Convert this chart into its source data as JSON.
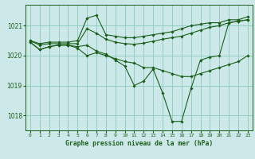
{
  "title": "Graphe pression niveau de la mer (hPa)",
  "bg_color": "#cce8e8",
  "grid_color": "#88ccbb",
  "line_color": "#1a5e1a",
  "xlim": [
    -0.5,
    23.5
  ],
  "ylim": [
    1017.5,
    1021.7
  ],
  "yticks": [
    1018,
    1019,
    1020,
    1021
  ],
  "xticks": [
    0,
    1,
    2,
    3,
    4,
    5,
    6,
    7,
    8,
    9,
    10,
    11,
    12,
    13,
    14,
    15,
    16,
    17,
    18,
    19,
    20,
    21,
    22,
    23
  ],
  "series": [
    {
      "x": [
        0,
        1,
        2,
        3,
        4,
        5,
        6,
        7,
        8,
        9,
        10,
        11,
        12,
        13,
        14,
        15,
        16,
        17,
        18,
        19,
        20,
        21,
        22,
        23
      ],
      "y": [
        1020.5,
        1020.4,
        1020.45,
        1020.45,
        1020.45,
        1020.5,
        1021.25,
        1021.35,
        1020.7,
        1020.65,
        1020.6,
        1020.6,
        1020.65,
        1020.7,
        1020.75,
        1020.8,
        1020.9,
        1021.0,
        1021.05,
        1021.1,
        1021.1,
        1021.2,
        1021.2,
        1021.3
      ]
    },
    {
      "x": [
        0,
        1,
        2,
        3,
        4,
        5,
        6,
        7,
        8,
        9,
        10,
        11,
        12,
        13,
        14,
        15,
        16,
        17,
        18,
        19,
        20,
        21,
        22,
        23
      ],
      "y": [
        1020.5,
        1020.35,
        1020.4,
        1020.4,
        1020.4,
        1020.4,
        1020.9,
        1020.75,
        1020.55,
        1020.45,
        1020.4,
        1020.38,
        1020.42,
        1020.48,
        1020.55,
        1020.6,
        1020.65,
        1020.75,
        1020.85,
        1020.95,
        1021.0,
        1021.1,
        1021.15,
        1021.2
      ]
    },
    {
      "x": [
        0,
        1,
        2,
        3,
        4,
        5,
        6,
        7,
        8,
        9,
        10,
        11,
        12,
        13,
        14,
        15,
        16,
        17,
        18,
        19,
        20,
        21,
        22,
        23
      ],
      "y": [
        1020.45,
        1020.2,
        1020.3,
        1020.35,
        1020.35,
        1020.3,
        1020.35,
        1020.15,
        1020.05,
        1019.85,
        1019.65,
        1019.0,
        1019.15,
        1019.55,
        1018.75,
        1017.8,
        1017.8,
        1018.9,
        1019.85,
        1019.95,
        1020.0,
        1021.1,
        1021.15,
        1021.2
      ]
    },
    {
      "x": [
        0,
        1,
        2,
        3,
        4,
        5,
        6,
        7,
        8,
        9,
        10,
        11,
        12,
        13,
        14,
        15,
        16,
        17,
        18,
        19,
        20,
        21,
        22,
        23
      ],
      "y": [
        1020.45,
        1020.2,
        1020.3,
        1020.35,
        1020.35,
        1020.25,
        1020.0,
        1020.1,
        1020.0,
        1019.9,
        1019.8,
        1019.75,
        1019.6,
        1019.6,
        1019.5,
        1019.4,
        1019.3,
        1019.3,
        1019.4,
        1019.5,
        1019.6,
        1019.7,
        1019.8,
        1020.0
      ]
    }
  ]
}
